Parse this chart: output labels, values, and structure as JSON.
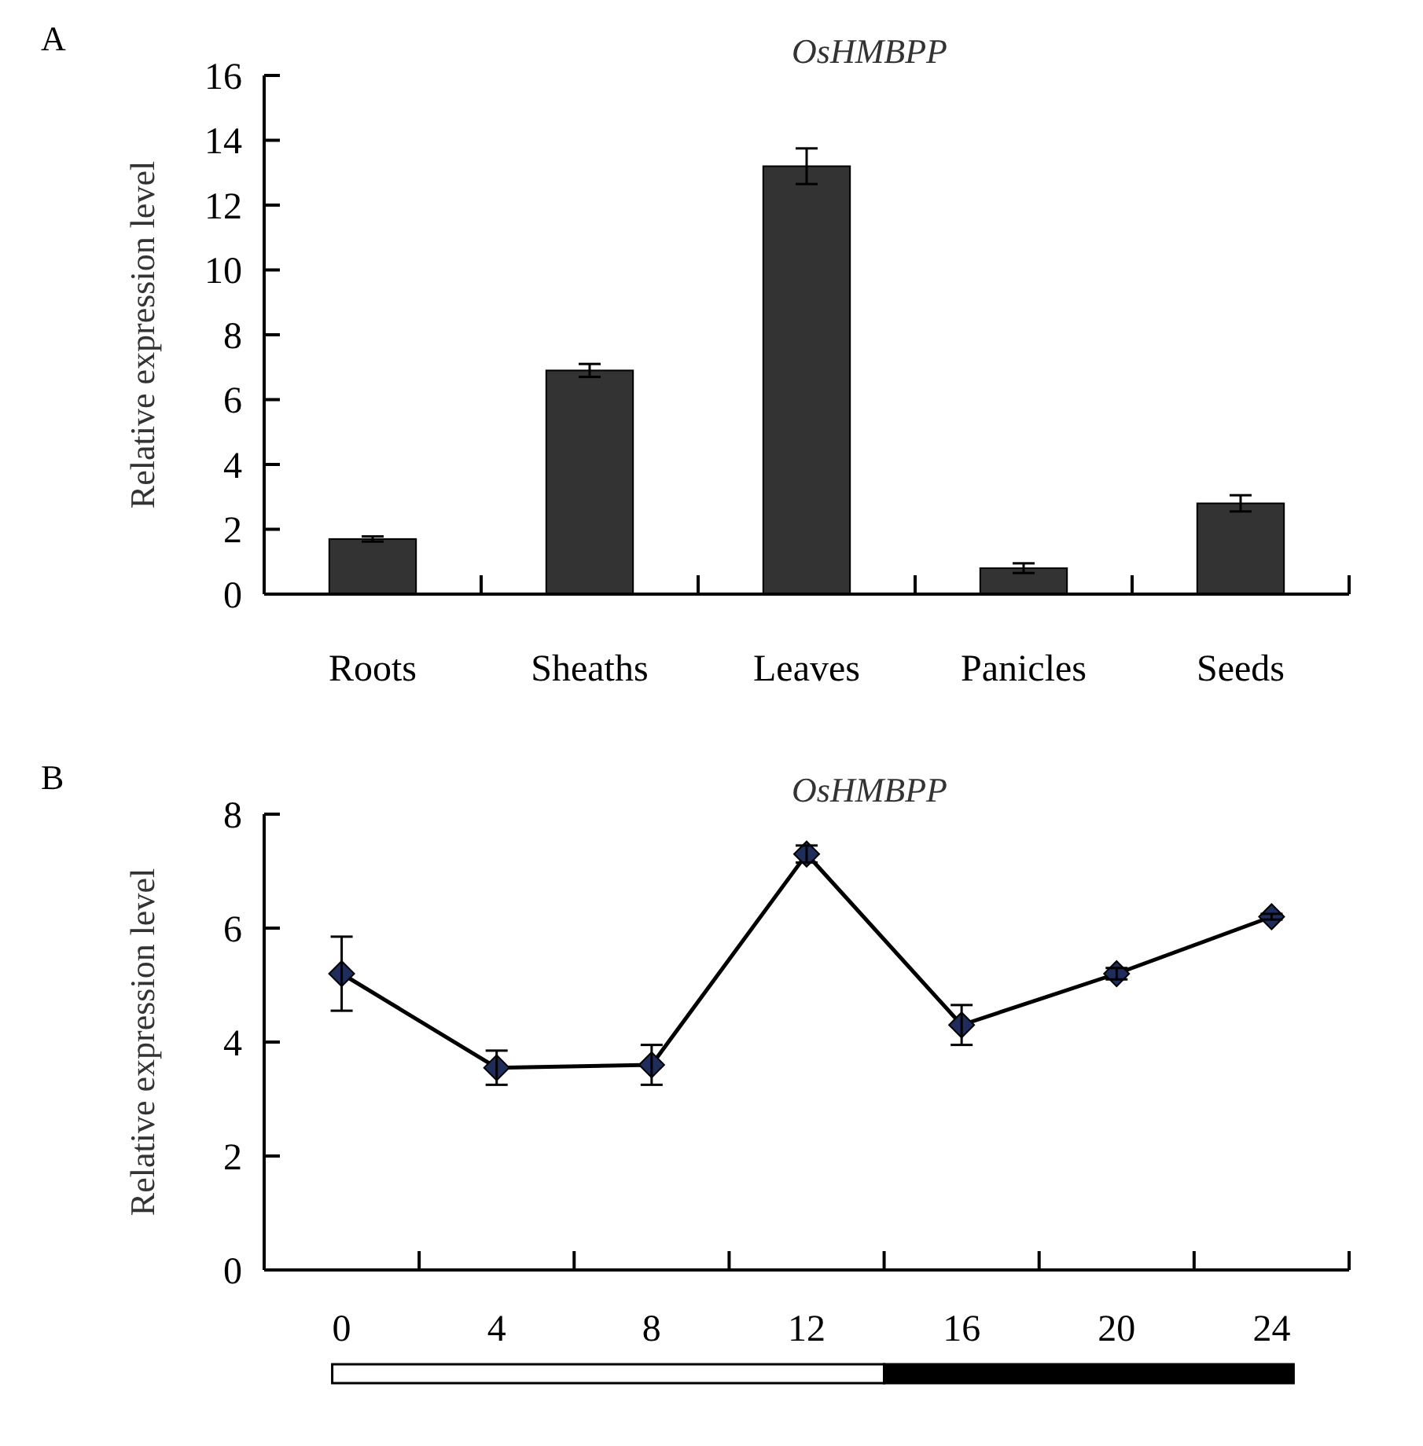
{
  "chart_data": [
    {
      "type": "bar",
      "title": "OsHMBPP",
      "ylabel": "Relative expression level",
      "annotations": [
        "A"
      ],
      "categories": [
        "Roots",
        "Sheaths",
        "Leaves",
        "Panicles",
        "Seeds"
      ],
      "values": [
        1.7,
        6.9,
        13.2,
        0.8,
        2.8
      ],
      "errors": [
        0.08,
        0.2,
        0.55,
        0.15,
        0.25
      ],
      "color": "#333333",
      "ylim": [
        0,
        16
      ],
      "yticks": [
        0,
        2,
        4,
        6,
        8,
        10,
        12,
        14,
        16
      ],
      "grid": false
    },
    {
      "type": "line",
      "title": "OsHMBPP",
      "ylabel": "Relative expression level",
      "annotations": [
        "B"
      ],
      "categories": [
        "0",
        "4",
        "8",
        "12",
        "16",
        "20",
        "24"
      ],
      "series": [
        {
          "color": "#1f2d5c",
          "values": [
            5.2,
            3.55,
            3.6,
            7.3,
            4.3,
            5.2,
            6.2
          ],
          "errors": [
            0.65,
            0.3,
            0.35,
            0.15,
            0.35,
            0.1,
            0.05
          ]
        }
      ],
      "ylim": [
        0,
        8
      ],
      "yticks": [
        0,
        2,
        4,
        6,
        8
      ],
      "marker": "diamond",
      "line_style": "solid",
      "grid": false
    }
  ]
}
